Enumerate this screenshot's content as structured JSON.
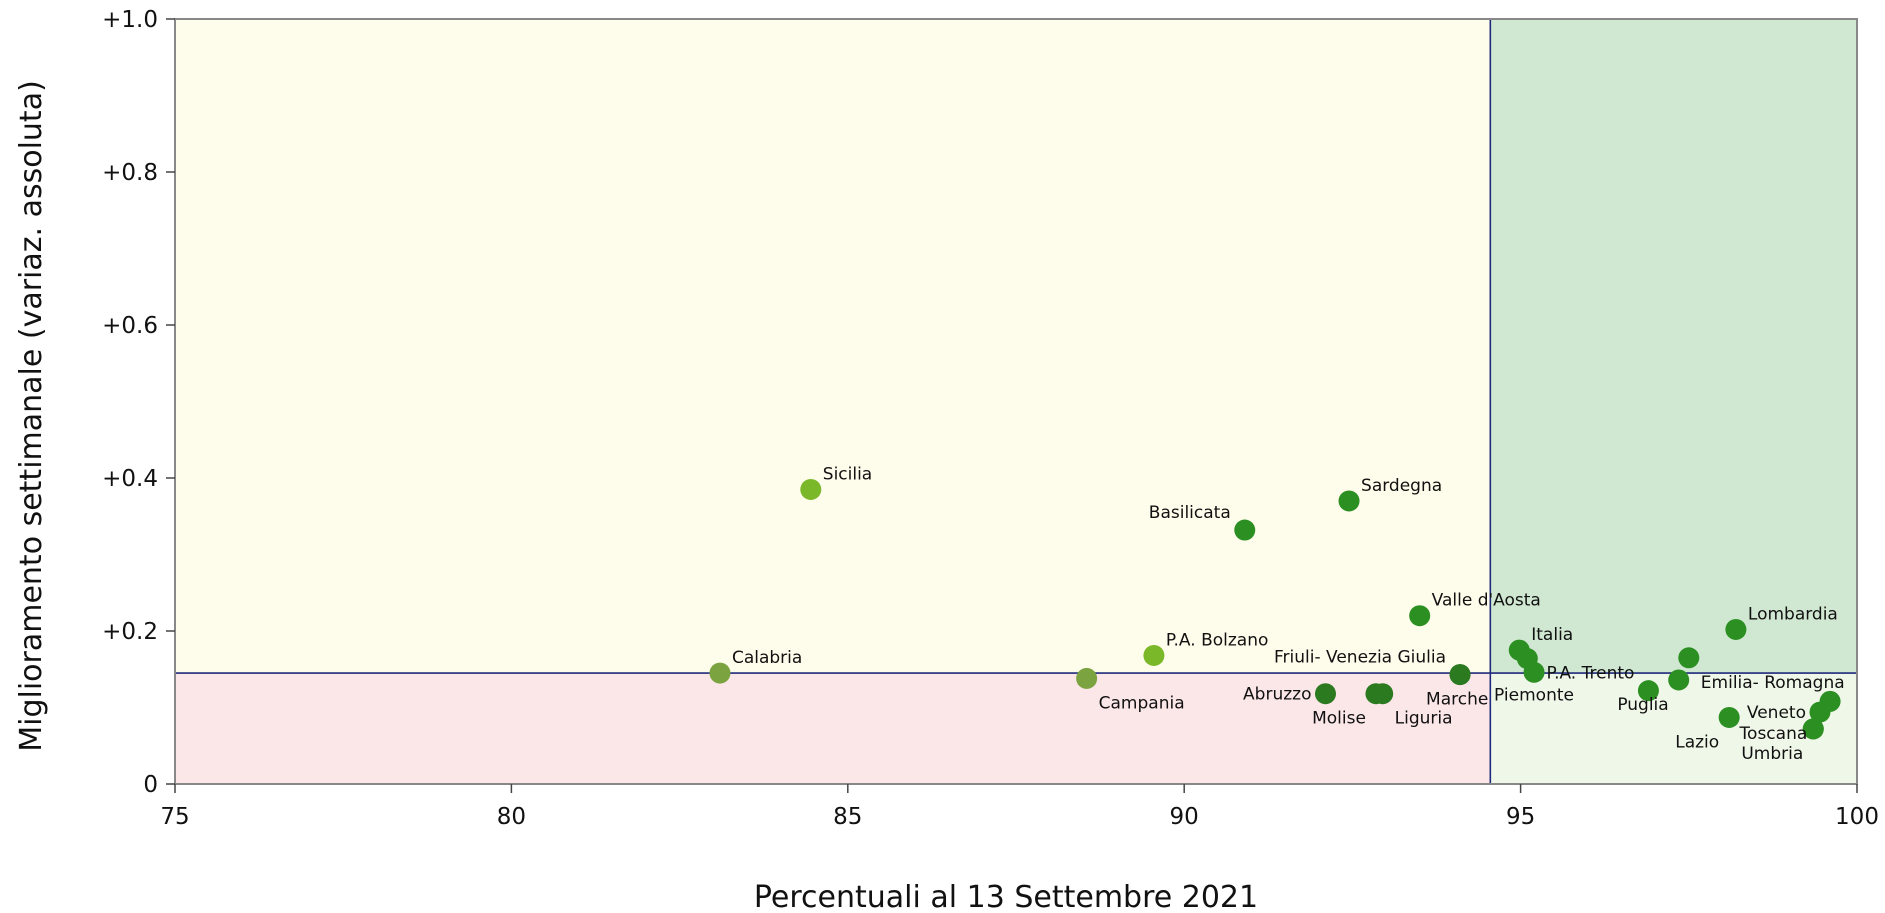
{
  "chart_data": {
    "type": "scatter",
    "title": "",
    "xlabel": "Percentuali al 13 Settembre 2021",
    "ylabel": "Miglioramento settimanale (variaz. assoluta)",
    "xlim": [
      75,
      100
    ],
    "ylim": [
      0,
      1.0
    ],
    "x_ticks": [
      {
        "value": 75,
        "label": "75"
      },
      {
        "value": 80,
        "label": "80"
      },
      {
        "value": 85,
        "label": "85"
      },
      {
        "value": 90,
        "label": "90"
      },
      {
        "value": 95,
        "label": "95"
      },
      {
        "value": 100,
        "label": "100"
      }
    ],
    "y_ticks": [
      {
        "value": 0,
        "label": "0"
      },
      {
        "value": 0.2,
        "label": "+0.2"
      },
      {
        "value": 0.4,
        "label": "+0.4"
      },
      {
        "value": 0.6,
        "label": "+0.6"
      },
      {
        "value": 0.8,
        "label": "+0.8"
      },
      {
        "value": 1.0,
        "label": "+1.0"
      }
    ],
    "reference_lines": {
      "x": 94.55,
      "y": 0.145
    },
    "quadrant_colors": {
      "top_left": "#fefcea",
      "top_right": "#d0e7d1",
      "bottom_left": "#fbe6e8",
      "bottom_right": "#eff7e9"
    },
    "reference_line_color": "#1f2a7a",
    "frame_color": "#888888",
    "grid": false,
    "legend": "none",
    "points": [
      {
        "label": "Sicilia",
        "x": 84.45,
        "y": 0.385,
        "color": "#7ab82a",
        "label_pos": "top-right"
      },
      {
        "label": "Calabria",
        "x": 83.1,
        "y": 0.145,
        "color": "#7ba33f",
        "label_pos": "top-right"
      },
      {
        "label": "Campania",
        "x": 88.55,
        "y": 0.138,
        "color": "#7ba33f",
        "label_pos": "bottom-right"
      },
      {
        "label": "P.A. Bolzano",
        "x": 89.55,
        "y": 0.168,
        "color": "#7ab82a",
        "label_pos": "top-right"
      },
      {
        "label": "Basilicata",
        "x": 90.9,
        "y": 0.332,
        "color": "#2b8f22",
        "label_pos": "top-left"
      },
      {
        "label": "Sardegna",
        "x": 92.45,
        "y": 0.37,
        "color": "#2b8f22",
        "label_pos": "top-right"
      },
      {
        "label": "Valle d'Aosta",
        "x": 93.5,
        "y": 0.22,
        "color": "#2b8f22",
        "label_pos": "top-right"
      },
      {
        "label": "Abruzzo",
        "x": 92.1,
        "y": 0.118,
        "color": "#2b7a1f",
        "label_pos": "left"
      },
      {
        "label": "Molise",
        "x": 92.85,
        "y": 0.118,
        "color": "#2b7a1f",
        "label_pos": "bottom-left"
      },
      {
        "label": "Liguria",
        "x": 92.95,
        "y": 0.118,
        "color": "#2b7a1f",
        "label_pos": "bottom-right"
      },
      {
        "label": "Friuli- Venezia Giulia",
        "x": 94.1,
        "y": 0.143,
        "color": "#2b7a1f",
        "label_pos": "top-left"
      },
      {
        "label": "Marche",
        "x": 94.1,
        "y": 0.143,
        "color": "#2b7a1f",
        "label_pos": "bottom-right-near"
      },
      {
        "label": "Italia",
        "x": 94.98,
        "y": 0.175,
        "color": "#2b8f22",
        "label_pos": "top-right"
      },
      {
        "label": "Piemonte",
        "x": 95.2,
        "y": 0.146,
        "color": "#2b8f22",
        "label_pos": "bottom"
      },
      {
        "label": "",
        "x": 95.1,
        "y": 0.164,
        "color": "#2b8f22",
        "label_pos": "none"
      },
      {
        "label": "P.A. Trento",
        "x": 96.9,
        "y": 0.122,
        "color": "#2b8f22",
        "label_pos": "top-left"
      },
      {
        "label": "Puglia",
        "x": 97.35,
        "y": 0.136,
        "color": "#2b8f22",
        "label_pos": "bottom-left"
      },
      {
        "label": "Emilia- Romagna",
        "x": 97.5,
        "y": 0.165,
        "color": "#2b8f22",
        "label_pos": "bottom-right"
      },
      {
        "label": "Lombardia",
        "x": 98.2,
        "y": 0.202,
        "color": "#2b8f22",
        "label_pos": "top-right"
      },
      {
        "label": "Lazio",
        "x": 98.1,
        "y": 0.087,
        "color": "#2b8f22",
        "label_pos": "bottom-left"
      },
      {
        "label": "Veneto",
        "x": 99.45,
        "y": 0.094,
        "color": "#2b8f22",
        "label_pos": "left"
      },
      {
        "label": "Toscana",
        "x": 99.35,
        "y": 0.072,
        "color": "#2b8f22",
        "label_pos": "left-low"
      },
      {
        "label": "Umbria",
        "x": 99.35,
        "y": 0.072,
        "color": "#2b8f22",
        "label_pos": "bottom-left"
      },
      {
        "label": "",
        "x": 99.6,
        "y": 0.108,
        "color": "#2b8f22",
        "label_pos": "none"
      }
    ]
  }
}
